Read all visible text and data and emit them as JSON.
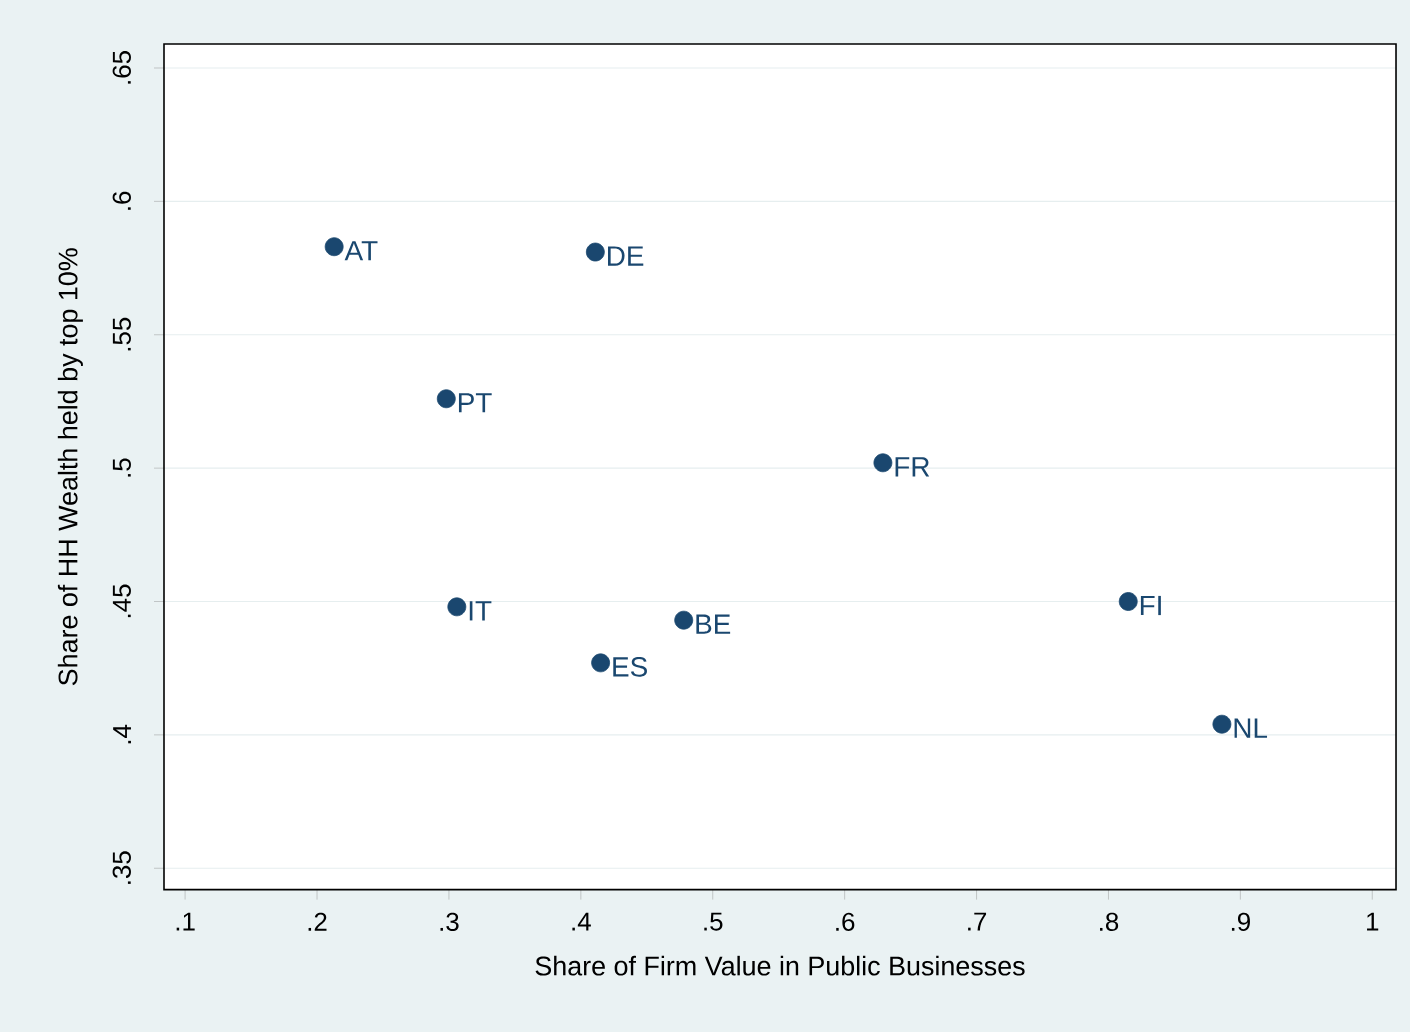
{
  "chart_data": {
    "type": "scatter",
    "xlabel": "Share of Firm Value in Public Businesses",
    "ylabel": "Share of HH Wealth held by top 10%",
    "x": [
      0.213,
      0.411,
      0.298,
      0.629,
      0.306,
      0.478,
      0.415,
      0.815,
      0.886
    ],
    "series": [
      {
        "color": "#1a476f",
        "values": [
          0.583,
          0.581,
          0.526,
          0.502,
          0.448,
          0.443,
          0.427,
          0.45,
          0.404
        ]
      }
    ],
    "annotations": [
      {
        "text": "AT",
        "x": 0.213,
        "y": 0.583
      },
      {
        "text": "DE",
        "x": 0.411,
        "y": 0.581
      },
      {
        "text": "PT",
        "x": 0.298,
        "y": 0.526
      },
      {
        "text": "FR",
        "x": 0.629,
        "y": 0.502
      },
      {
        "text": "IT",
        "x": 0.306,
        "y": 0.448
      },
      {
        "text": "BE",
        "x": 0.478,
        "y": 0.443
      },
      {
        "text": "ES",
        "x": 0.415,
        "y": 0.427
      },
      {
        "text": "FI",
        "x": 0.815,
        "y": 0.45
      },
      {
        "text": "NL",
        "x": 0.886,
        "y": 0.404
      }
    ],
    "xlim": [
      0.084,
      1.018
    ],
    "ylim": [
      0.342,
      0.659
    ],
    "xticks": [
      {
        "value": 0.1,
        "label": ".1"
      },
      {
        "value": 0.2,
        "label": ".2"
      },
      {
        "value": 0.3,
        "label": ".3"
      },
      {
        "value": 0.4,
        "label": ".4"
      },
      {
        "value": 0.5,
        "label": ".5"
      },
      {
        "value": 0.6,
        "label": ".6"
      },
      {
        "value": 0.7,
        "label": ".7"
      },
      {
        "value": 0.8,
        "label": ".8"
      },
      {
        "value": 0.9,
        "label": ".9"
      },
      {
        "value": 1,
        "label": "1"
      }
    ],
    "yticks": [
      {
        "value": 0.35,
        "label": ".35"
      },
      {
        "value": 0.4,
        "label": ".4"
      },
      {
        "value": 0.45,
        "label": ".45"
      },
      {
        "value": 0.5,
        "label": ".5"
      },
      {
        "value": 0.55,
        "label": ".55"
      },
      {
        "value": 0.6,
        "label": ".6"
      },
      {
        "value": 0.65,
        "label": ".65"
      }
    ],
    "grid": "y",
    "marker": "circle"
  }
}
